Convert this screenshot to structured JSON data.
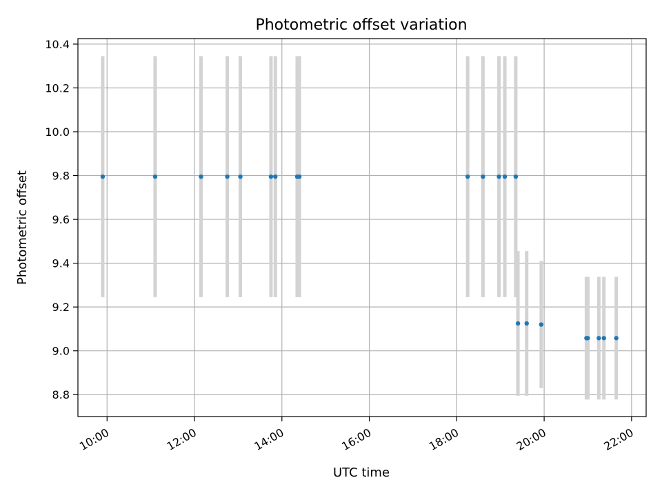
{
  "chart_data": {
    "type": "scatter",
    "title": "Photometric offset variation",
    "xlabel": "UTC time",
    "ylabel": "Photometric offset",
    "x_unit": "UTC time (HH:MM)",
    "x_ticks": [
      "10:00",
      "12:00",
      "14:00",
      "16:00",
      "18:00",
      "20:00",
      "22:00"
    ],
    "y_ticks": [
      "8.8",
      "9.0",
      "9.2",
      "9.4",
      "9.6",
      "9.8",
      "10.0",
      "10.2",
      "10.4"
    ],
    "xlim": [
      "09:20",
      "22:20"
    ],
    "ylim": [
      8.7,
      10.425
    ],
    "grid": true,
    "errorbar_color": "#d3d3d3",
    "marker_color": "#1f77b4",
    "points": [
      {
        "x": "09:54",
        "y": 9.795,
        "err": 0.55
      },
      {
        "x": "11:06",
        "y": 9.795,
        "err": 0.55
      },
      {
        "x": "12:09",
        "y": 9.795,
        "err": 0.55
      },
      {
        "x": "12:45",
        "y": 9.795,
        "err": 0.55
      },
      {
        "x": "13:03",
        "y": 9.795,
        "err": 0.55
      },
      {
        "x": "13:45",
        "y": 9.795,
        "err": 0.55
      },
      {
        "x": "13:51",
        "y": 9.795,
        "err": 0.55
      },
      {
        "x": "14:21",
        "y": 9.795,
        "err": 0.55
      },
      {
        "x": "14:24",
        "y": 9.795,
        "err": 0.55
      },
      {
        "x": "18:15",
        "y": 9.795,
        "err": 0.55
      },
      {
        "x": "18:36",
        "y": 9.795,
        "err": 0.55
      },
      {
        "x": "18:58",
        "y": 9.795,
        "err": 0.55
      },
      {
        "x": "19:06",
        "y": 9.795,
        "err": 0.55
      },
      {
        "x": "19:21",
        "y": 9.795,
        "err": 0.55
      },
      {
        "x": "19:24",
        "y": 9.125,
        "err": 0.33
      },
      {
        "x": "19:36",
        "y": 9.125,
        "err": 0.33
      },
      {
        "x": "19:56",
        "y": 9.12,
        "err": 0.29
      },
      {
        "x": "20:58",
        "y": 9.058,
        "err": 0.28
      },
      {
        "x": "21:00",
        "y": 9.058,
        "err": 0.28
      },
      {
        "x": "21:15",
        "y": 9.058,
        "err": 0.28
      },
      {
        "x": "21:22",
        "y": 9.058,
        "err": 0.28
      },
      {
        "x": "21:39",
        "y": 9.058,
        "err": 0.28
      }
    ]
  }
}
